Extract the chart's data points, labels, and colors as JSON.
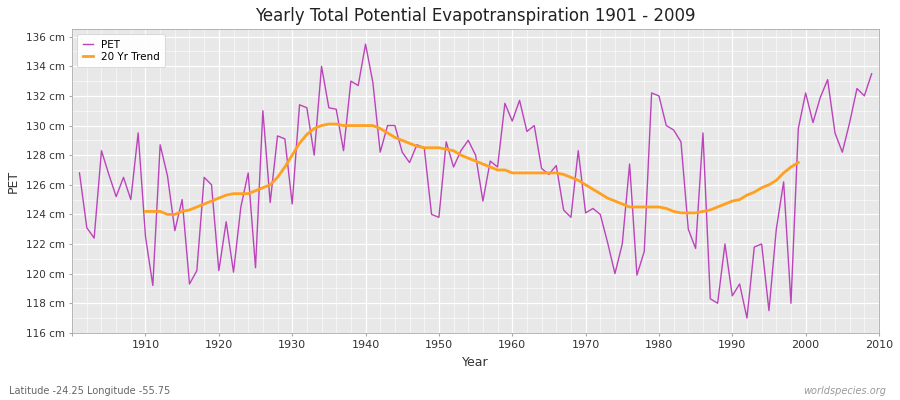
{
  "title": "Yearly Total Potential Evapotranspiration 1901 - 2009",
  "xlabel": "Year",
  "ylabel": "PET",
  "lat_lon_label": "Latitude -24.25 Longitude -55.75",
  "watermark": "worldspecies.org",
  "ylim": [
    116,
    136.5
  ],
  "xlim": [
    1900,
    2010
  ],
  "yticks": [
    116,
    118,
    120,
    122,
    124,
    126,
    128,
    130,
    132,
    134,
    136
  ],
  "ytick_labels": [
    "116 cm",
    "118 cm",
    "120 cm",
    "122 cm",
    "124 cm",
    "126 cm",
    "128 cm",
    "130 cm",
    "132 cm",
    "134 cm",
    "136 cm"
  ],
  "pet_color": "#BB44BB",
  "trend_color": "#FFA020",
  "bg_color": "#E8E8E8",
  "fig_color": "#FFFFFF",
  "years": [
    1901,
    1902,
    1903,
    1904,
    1905,
    1906,
    1907,
    1908,
    1909,
    1910,
    1911,
    1912,
    1913,
    1914,
    1915,
    1916,
    1917,
    1918,
    1919,
    1920,
    1921,
    1922,
    1923,
    1924,
    1925,
    1926,
    1927,
    1928,
    1929,
    1930,
    1931,
    1932,
    1933,
    1934,
    1935,
    1936,
    1937,
    1938,
    1939,
    1940,
    1941,
    1942,
    1943,
    1944,
    1945,
    1946,
    1947,
    1948,
    1949,
    1950,
    1951,
    1952,
    1953,
    1954,
    1955,
    1956,
    1957,
    1958,
    1959,
    1960,
    1961,
    1962,
    1963,
    1964,
    1965,
    1966,
    1967,
    1968,
    1969,
    1970,
    1971,
    1972,
    1973,
    1974,
    1975,
    1976,
    1977,
    1978,
    1979,
    1980,
    1981,
    1982,
    1983,
    1984,
    1985,
    1986,
    1987,
    1988,
    1989,
    1990,
    1991,
    1992,
    1993,
    1994,
    1995,
    1996,
    1997,
    1998,
    1999,
    2000,
    2001,
    2002,
    2003,
    2004,
    2005,
    2006,
    2007,
    2008,
    2009
  ],
  "pet_values": [
    126.8,
    123.1,
    122.4,
    128.3,
    126.7,
    125.2,
    126.5,
    125.0,
    129.5,
    122.5,
    119.2,
    128.7,
    126.6,
    122.9,
    125.0,
    119.3,
    120.2,
    126.5,
    126.0,
    120.2,
    123.5,
    120.1,
    124.5,
    126.8,
    120.4,
    131.0,
    124.8,
    129.3,
    129.1,
    124.7,
    131.4,
    131.2,
    128.0,
    134.0,
    131.2,
    131.1,
    128.3,
    133.0,
    132.7,
    135.5,
    132.9,
    128.2,
    130.0,
    130.0,
    128.2,
    127.5,
    128.7,
    128.5,
    124.0,
    123.8,
    128.9,
    127.2,
    128.3,
    129.0,
    128.0,
    124.9,
    127.6,
    127.2,
    131.5,
    130.3,
    131.7,
    129.6,
    130.0,
    127.1,
    126.7,
    127.3,
    124.3,
    123.8,
    128.3,
    124.1,
    124.4,
    124.0,
    122.1,
    120.0,
    122.0,
    127.4,
    119.9,
    121.5,
    132.2,
    132.0,
    130.0,
    129.7,
    128.9,
    123.0,
    121.7,
    129.5,
    118.3,
    118.0,
    122.0,
    118.5,
    119.3,
    117.0,
    121.8,
    122.0,
    117.5,
    123.0,
    126.2,
    118.0,
    129.8,
    132.2,
    130.2,
    131.9,
    133.1,
    129.5,
    128.2,
    130.2,
    132.5,
    132.0,
    133.5
  ],
  "trend_years": [
    1910,
    1911,
    1912,
    1913,
    1914,
    1915,
    1916,
    1917,
    1918,
    1919,
    1920,
    1921,
    1922,
    1923,
    1924,
    1925,
    1926,
    1927,
    1928,
    1929,
    1930,
    1931,
    1932,
    1933,
    1934,
    1935,
    1936,
    1937,
    1938,
    1939,
    1940,
    1941,
    1942,
    1943,
    1944,
    1945,
    1946,
    1947,
    1948,
    1949,
    1950,
    1951,
    1952,
    1953,
    1954,
    1955,
    1956,
    1957,
    1958,
    1959,
    1960,
    1961,
    1962,
    1963,
    1964,
    1965,
    1966,
    1967,
    1968,
    1969,
    1970,
    1971,
    1972,
    1973,
    1974,
    1975,
    1976,
    1977,
    1978,
    1979,
    1980,
    1981,
    1982,
    1983,
    1984,
    1985,
    1986,
    1987,
    1988,
    1989,
    1990,
    1991,
    1992,
    1993,
    1994,
    1995,
    1996,
    1997,
    1998,
    1999
  ],
  "trend_values": [
    124.2,
    124.2,
    124.2,
    124.0,
    124.0,
    124.2,
    124.3,
    124.5,
    124.7,
    124.9,
    125.1,
    125.3,
    125.4,
    125.4,
    125.4,
    125.6,
    125.8,
    126.0,
    126.5,
    127.2,
    128.0,
    128.8,
    129.4,
    129.8,
    130.0,
    130.1,
    130.1,
    130.0,
    130.0,
    130.0,
    130.0,
    130.0,
    129.8,
    129.5,
    129.2,
    129.0,
    128.8,
    128.6,
    128.5,
    128.5,
    128.5,
    128.4,
    128.3,
    128.0,
    127.8,
    127.6,
    127.4,
    127.2,
    127.0,
    127.0,
    126.8,
    126.8,
    126.8,
    126.8,
    126.8,
    126.8,
    126.8,
    126.7,
    126.5,
    126.3,
    126.0,
    125.7,
    125.4,
    125.1,
    124.9,
    124.7,
    124.5,
    124.5,
    124.5,
    124.5,
    124.5,
    124.4,
    124.2,
    124.1,
    124.1,
    124.1,
    124.2,
    124.3,
    124.5,
    124.7,
    124.9,
    125.0,
    125.3,
    125.5,
    125.8,
    126.0,
    126.3,
    126.8,
    127.2,
    127.5
  ]
}
